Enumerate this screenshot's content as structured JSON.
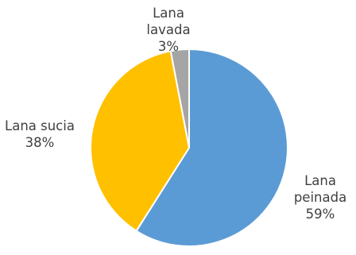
{
  "chart_data": {
    "type": "pie",
    "title": "",
    "slices": [
      {
        "label": "Lana peinada",
        "value": 59,
        "percent_label": "59%",
        "color": "#5B9BD5",
        "label_lines": [
          "Lana",
          "peinada",
          "59%"
        ]
      },
      {
        "label": "Lana sucia",
        "value": 38,
        "percent_label": "38%",
        "color": "#FFC000",
        "label_lines": [
          "Lana sucia",
          "38%"
        ]
      },
      {
        "label": "Lana lavada",
        "value": 3,
        "percent_label": "3%",
        "color": "#A5A5A5",
        "label_lines": [
          "Lana",
          "lavada",
          "3%"
        ]
      }
    ],
    "start_angle_deg": 0,
    "direction": "clockwise",
    "legend": "none"
  }
}
